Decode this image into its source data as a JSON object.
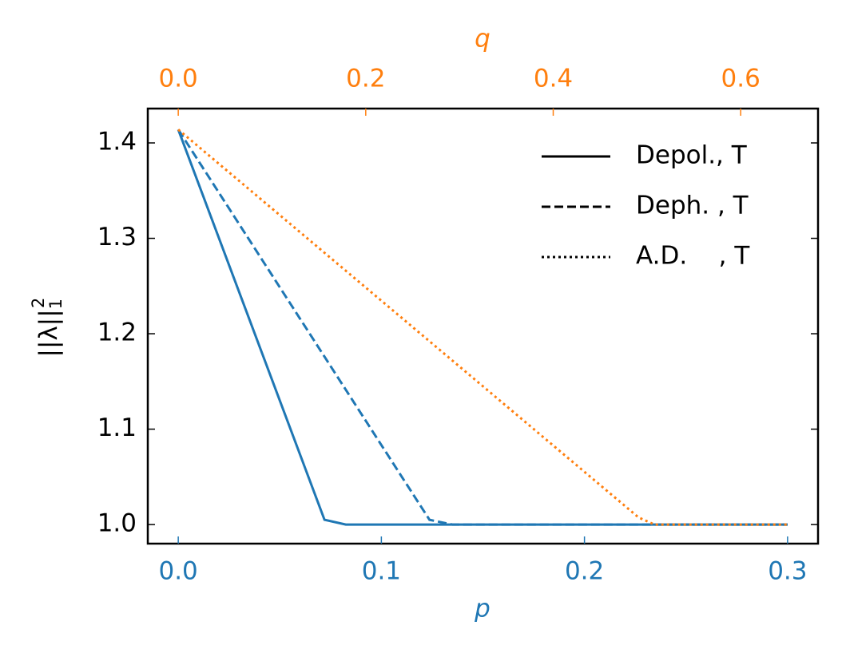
{
  "chart_data": {
    "type": "line",
    "xlabel": "p",
    "x2label": "q",
    "ylabel": "||λ||",
    "ylabel_sub": "1",
    "ylabel_sup": "2",
    "xlim": [
      -0.015,
      0.315
    ],
    "xticks": [
      {
        "value": 0,
        "label": "0.0"
      },
      0.1,
      0.2,
      0.3
    ],
    "x_color": "#1f77b4",
    "x2lim": [
      -0.0325,
      0.6825
    ],
    "x2ticks": [
      {
        "value": 0,
        "label": "0.0"
      },
      0.2,
      0.4,
      0.6
    ],
    "x2_color": "#ff7f0e",
    "ylim": [
      0.98,
      1.436
    ],
    "yticks": [
      {
        "value": 1,
        "label": "1.0"
      },
      1.1,
      1.2,
      1.3,
      1.4
    ],
    "legend": "upper right",
    "legend_color": "#000000",
    "series": [
      {
        "name": "Depol., T",
        "color": "#1f77b4",
        "linestyle": "solid",
        "axis": "x",
        "x": [
          0,
          0.072,
          0.0825,
          0.3
        ],
        "values": [
          1.414,
          1.005,
          1.0,
          1.0
        ]
      },
      {
        "name": "Deph. , T",
        "color": "#1f77b4",
        "linestyle": "dashed",
        "axis": "x",
        "x": [
          0,
          0.1237,
          0.135,
          0.3
        ],
        "values": [
          1.414,
          1.005,
          1.0,
          1.0
        ]
      },
      {
        "name": "A.D.    , T",
        "color": "#ff7f0e",
        "linestyle": "dotted",
        "axis": "x2",
        "x": [
          0,
          0.491,
          0.508,
          0.65
        ],
        "values": [
          1.414,
          1.0075,
          1.0,
          1.0
        ]
      }
    ]
  }
}
